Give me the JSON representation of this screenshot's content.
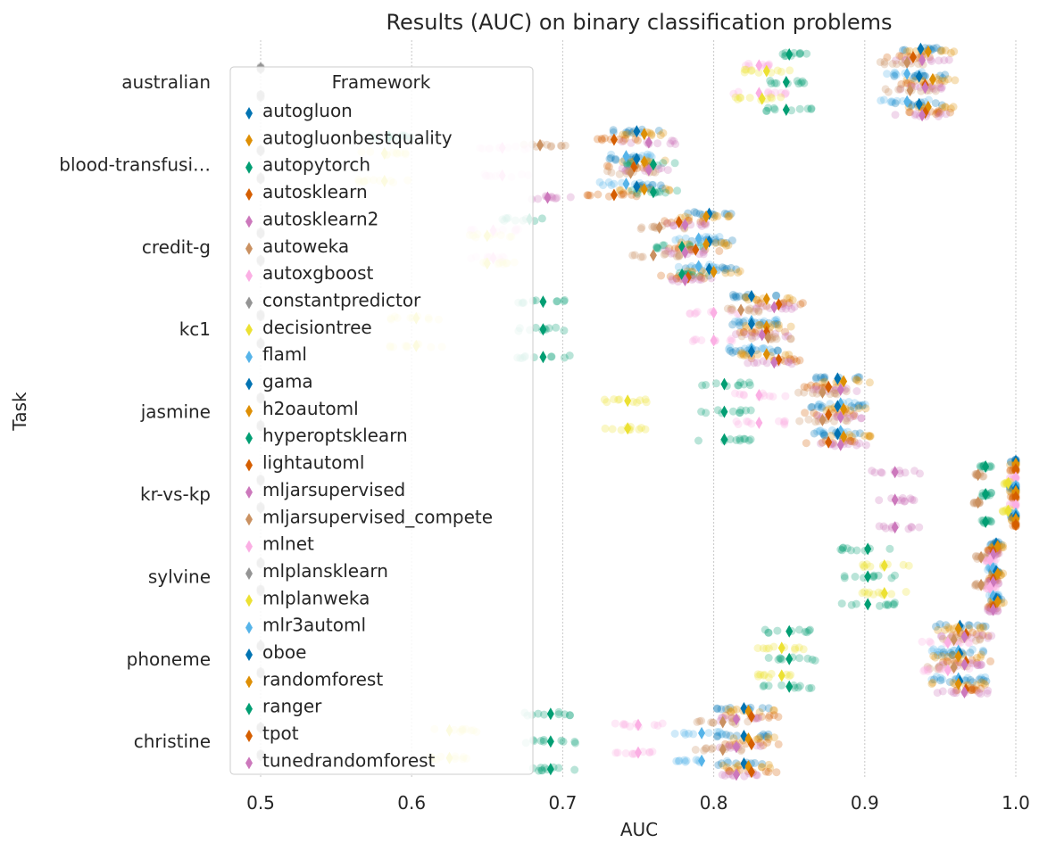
{
  "chart_data": {
    "type": "scatter",
    "title": "Results (AUC) on  binary classification problems",
    "xlabel": "AUC",
    "ylabel": "Task",
    "xlim": [
      0.48,
      1.01
    ],
    "xticks": [
      "0.5",
      "0.6",
      "0.7",
      "0.8",
      "0.9",
      "1.0"
    ],
    "grid": "vertical dotted",
    "legend_title": "Framework",
    "legend_position": "upper-left",
    "tasks": [
      "australian",
      "blood-transfusi…",
      "credit-g",
      "kc1",
      "jasmine",
      "kr-vs-kp",
      "sylvine",
      "phoneme",
      "christine"
    ],
    "frameworks": [
      {
        "name": "autogluon",
        "color": "#0173b2"
      },
      {
        "name": "autogluonbestquality",
        "color": "#de8f05"
      },
      {
        "name": "autopytorch",
        "color": "#029e73"
      },
      {
        "name": "autosklearn",
        "color": "#d55e00"
      },
      {
        "name": "autosklearn2",
        "color": "#cc78bc"
      },
      {
        "name": "autoweka",
        "color": "#ca9161"
      },
      {
        "name": "autoxgboost",
        "color": "#fbafe4"
      },
      {
        "name": "constantpredictor",
        "color": "#949494"
      },
      {
        "name": "decisiontree",
        "color": "#ece133"
      },
      {
        "name": "flaml",
        "color": "#56b4e9"
      },
      {
        "name": "gama",
        "color": "#0173b2"
      },
      {
        "name": "h2oautoml",
        "color": "#de8f05"
      },
      {
        "name": "hyperoptsklearn",
        "color": "#029e73"
      },
      {
        "name": "lightautoml",
        "color": "#d55e00"
      },
      {
        "name": "mljarsupervised",
        "color": "#cc78bc"
      },
      {
        "name": "mljarsupervised_compete",
        "color": "#ca9161"
      },
      {
        "name": "mlnet",
        "color": "#fbafe4"
      },
      {
        "name": "mlplansklearn",
        "color": "#949494"
      },
      {
        "name": "mlplanweka",
        "color": "#ece133"
      },
      {
        "name": "mlr3automl",
        "color": "#56b4e9"
      },
      {
        "name": "oboe",
        "color": "#0173b2"
      },
      {
        "name": "randomforest",
        "color": "#de8f05"
      },
      {
        "name": "ranger",
        "color": "#029e73"
      },
      {
        "name": "tpot",
        "color": "#d55e00"
      },
      {
        "name": "tunedrandomforest",
        "color": "#cc78bc"
      }
    ],
    "means": [
      {
        "task": "australian",
        "values": {
          "autogluon": 0.937,
          "autogluonbestquality": 0.942,
          "autopytorch": 0.85,
          "autosklearn": 0.932,
          "autosklearn2": 0.938,
          "autoweka": 0.928,
          "autoxgboost": 0.83,
          "constantpredictor": 0.5,
          "decisiontree": 0.835,
          "flaml": 0.928,
          "gama": 0.936,
          "h2oautoml": 0.945,
          "hyperoptsklearn": 0.848,
          "lightautoml": 0.94,
          "mljarsupervised": 0.94,
          "mljarsupervised_compete": 0.93,
          "mlnet": 0.83,
          "mlplansklearn": 0.5,
          "mlplanweka": 0.832,
          "mlr3automl": 0.928,
          "oboe": 0.936,
          "randomforest": 0.942,
          "ranger": 0.848,
          "tpot": 0.94,
          "tunedrandomforest": 0.938
        }
      },
      {
        "task": "blood-transfusi…",
        "values": {
          "autogluon": 0.749,
          "autogluonbestquality": 0.754,
          "autopytorch": 0.585,
          "autosklearn": 0.734,
          "autosklearn2": 0.757,
          "autoweka": 0.685,
          "autoxgboost": 0.66,
          "constantpredictor": 0.5,
          "decisiontree": 0.582,
          "flaml": 0.742,
          "gama": 0.749,
          "h2oautoml": 0.754,
          "hyperoptsklearn": 0.76,
          "lightautoml": 0.747,
          "mljarsupervised": 0.757,
          "mljarsupervised_compete": 0.745,
          "mlnet": 0.66,
          "mlplansklearn": 0.5,
          "mlplanweka": 0.582,
          "mlr3automl": 0.742,
          "oboe": 0.749,
          "randomforest": 0.754,
          "ranger": 0.76,
          "tpot": 0.734,
          "tunedrandomforest": 0.69
        }
      },
      {
        "task": "credit-g",
        "values": {
          "autogluon": 0.797,
          "autogluonbestquality": 0.795,
          "autopytorch": 0.678,
          "autosklearn": 0.777,
          "autosklearn2": 0.781,
          "autoweka": 0.764,
          "autoxgboost": 0.654,
          "constantpredictor": 0.5,
          "decisiontree": 0.65,
          "flaml": 0.79,
          "gama": 0.797,
          "h2oautoml": 0.795,
          "hyperoptsklearn": 0.779,
          "lightautoml": 0.788,
          "mljarsupervised": 0.781,
          "mljarsupervised_compete": 0.76,
          "mlnet": 0.654,
          "mlplansklearn": 0.5,
          "mlplanweka": 0.65,
          "mlr3automl": 0.79,
          "oboe": 0.797,
          "randomforest": 0.8,
          "ranger": 0.779,
          "tpot": 0.783,
          "tunedrandomforest": 0.781
        }
      },
      {
        "task": "kc1",
        "values": {
          "autogluon": 0.825,
          "autogluonbestquality": 0.835,
          "autopytorch": 0.687,
          "autosklearn": 0.843,
          "autosklearn2": 0.84,
          "autoweka": 0.818,
          "autoxgboost": 0.8,
          "constantpredictor": 0.5,
          "decisiontree": 0.603,
          "flaml": 0.825,
          "gama": 0.825,
          "h2oautoml": 0.835,
          "hyperoptsklearn": 0.687,
          "lightautoml": 0.835,
          "mljarsupervised": 0.832,
          "mljarsupervised_compete": 0.836,
          "mlnet": 0.8,
          "mlplansklearn": 0.5,
          "mlplanweka": 0.603,
          "mlr3automl": 0.825,
          "oboe": 0.825,
          "randomforest": 0.835,
          "ranger": 0.687,
          "tpot": 0.843,
          "tunedrandomforest": 0.84
        }
      },
      {
        "task": "jasmine",
        "values": {
          "autogluon": 0.882,
          "autogluonbestquality": 0.886,
          "autopytorch": 0.807,
          "autosklearn": 0.876,
          "autosklearn2": 0.884,
          "autoweka": 0.872,
          "autoxgboost": 0.83,
          "constantpredictor": 0.5,
          "decisiontree": 0.743,
          "flaml": 0.884,
          "gama": 0.882,
          "h2oautoml": 0.886,
          "hyperoptsklearn": 0.807,
          "lightautoml": 0.876,
          "mljarsupervised": 0.884,
          "mljarsupervised_compete": 0.872,
          "mlnet": 0.83,
          "mlplansklearn": 0.5,
          "mlplanweka": 0.743,
          "mlr3automl": 0.884,
          "oboe": 0.882,
          "randomforest": 0.886,
          "ranger": 0.807,
          "tpot": 0.876,
          "tunedrandomforest": 0.884
        }
      },
      {
        "task": "kr-vs-kp",
        "values": {
          "autogluon": 1.0,
          "autogluonbestquality": 1.0,
          "autopytorch": 0.98,
          "autosklearn": 1.0,
          "autosklearn2": 0.92,
          "autoweka": 0.975,
          "autoxgboost": 1.0,
          "constantpredictor": 0.5,
          "decisiontree": 0.995,
          "flaml": 1.0,
          "gama": 1.0,
          "h2oautoml": 1.0,
          "hyperoptsklearn": 0.98,
          "lightautoml": 1.0,
          "mljarsupervised": 0.92,
          "mljarsupervised_compete": 0.975,
          "mlnet": 1.0,
          "mlplansklearn": 0.5,
          "mlplanweka": 0.995,
          "mlr3automl": 1.0,
          "oboe": 1.0,
          "randomforest": 1.0,
          "ranger": 0.98,
          "tpot": 1.0,
          "tunedrandomforest": 0.92
        }
      },
      {
        "task": "sylvine",
        "values": {
          "autogluon": 0.987,
          "autogluonbestquality": 0.988,
          "autopytorch": 0.902,
          "autosklearn": 0.985,
          "autosklearn2": 0.985,
          "autoweka": 0.977,
          "autoxgboost": 0.983,
          "constantpredictor": 0.5,
          "decisiontree": 0.913,
          "flaml": 0.985,
          "gama": 0.987,
          "h2oautoml": 0.988,
          "hyperoptsklearn": 0.902,
          "lightautoml": 0.985,
          "mljarsupervised": 0.985,
          "mljarsupervised_compete": 0.977,
          "mlnet": 0.983,
          "mlplansklearn": 0.5,
          "mlplanweka": 0.913,
          "mlr3automl": 0.985,
          "oboe": 0.987,
          "randomforest": 0.988,
          "ranger": 0.902,
          "tpot": 0.985,
          "tunedrandomforest": 0.985
        }
      },
      {
        "task": "phoneme",
        "values": {
          "autogluon": 0.963,
          "autogluonbestquality": 0.962,
          "autopytorch": 0.85,
          "autosklearn": 0.967,
          "autosklearn2": 0.966,
          "autoweka": 0.959,
          "autoxgboost": 0.955,
          "constantpredictor": 0.5,
          "decisiontree": 0.845,
          "flaml": 0.962,
          "gama": 0.963,
          "h2oautoml": 0.962,
          "hyperoptsklearn": 0.85,
          "lightautoml": 0.967,
          "mljarsupervised": 0.966,
          "mljarsupervised_compete": 0.959,
          "mlnet": 0.955,
          "mlplansklearn": 0.5,
          "mlplanweka": 0.845,
          "mlr3automl": 0.962,
          "oboe": 0.963,
          "randomforest": 0.962,
          "ranger": 0.85,
          "tpot": 0.967,
          "tunedrandomforest": 0.966
        }
      },
      {
        "task": "christine",
        "values": {
          "autogluon": 0.82,
          "autogluonbestquality": 0.823,
          "autopytorch": 0.692,
          "autosklearn": 0.825,
          "autosklearn2": 0.815,
          "autoweka": 0.806,
          "autoxgboost": 0.75,
          "constantpredictor": 0.5,
          "decisiontree": 0.625,
          "flaml": 0.792,
          "gama": 0.82,
          "h2oautoml": 0.823,
          "hyperoptsklearn": 0.692,
          "lightautoml": 0.825,
          "mljarsupervised": 0.815,
          "mljarsupervised_compete": 0.806,
          "mlnet": 0.75,
          "mlplansklearn": 0.5,
          "mlplanweka": 0.625,
          "mlr3automl": 0.792,
          "oboe": 0.82,
          "randomforest": 0.823,
          "ranger": 0.692,
          "tpot": 0.825,
          "tunedrandomforest": 0.815
        }
      }
    ]
  }
}
